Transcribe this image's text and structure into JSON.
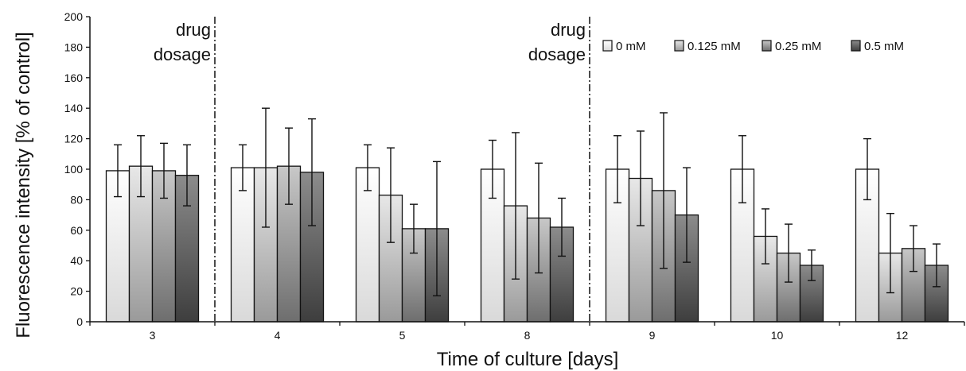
{
  "chart_data": {
    "type": "bar",
    "xlabel": "Time of culture [days]",
    "ylabel": "Fluorescence intensity [% of control]",
    "ylim": [
      0,
      200
    ],
    "yticks": [
      0,
      20,
      40,
      60,
      80,
      100,
      120,
      140,
      160,
      180,
      200
    ],
    "categories": [
      "3",
      "4",
      "5",
      "8",
      "9",
      "10",
      "12"
    ],
    "series": [
      {
        "name": "0 mM",
        "values": [
          99,
          101,
          101,
          100,
          100,
          100,
          100
        ],
        "errors": [
          17,
          15,
          15,
          19,
          22,
          22,
          20
        ],
        "color_light": "#ffffff",
        "color_dark": "#d9d9d9"
      },
      {
        "name": "0.125 mM",
        "values": [
          102,
          101,
          83,
          76,
          94,
          56,
          45
        ],
        "errors": [
          20,
          39,
          31,
          48,
          31,
          18,
          26
        ],
        "color_light": "#e8e8e8",
        "color_dark": "#9a9a9a"
      },
      {
        "name": "0.25 mM",
        "values": [
          99,
          102,
          61,
          68,
          86,
          45,
          48
        ],
        "errors": [
          18,
          25,
          16,
          36,
          51,
          19,
          15
        ],
        "color_light": "#c8c8c8",
        "color_dark": "#6e6e6e"
      },
      {
        "name": "0.5 mM",
        "values": [
          96,
          98,
          61,
          62,
          70,
          37,
          37
        ],
        "errors": [
          20,
          35,
          44,
          19,
          31,
          10,
          14
        ],
        "color_light": "#8c8c8c",
        "color_dark": "#3e3e3e"
      }
    ],
    "annotations": [
      {
        "line1": "drug",
        "line2": "dosage",
        "after_category": "3"
      },
      {
        "line1": "drug",
        "line2": "dosage",
        "after_category": "8"
      }
    ],
    "legend_position": "top-right",
    "grid": false
  }
}
